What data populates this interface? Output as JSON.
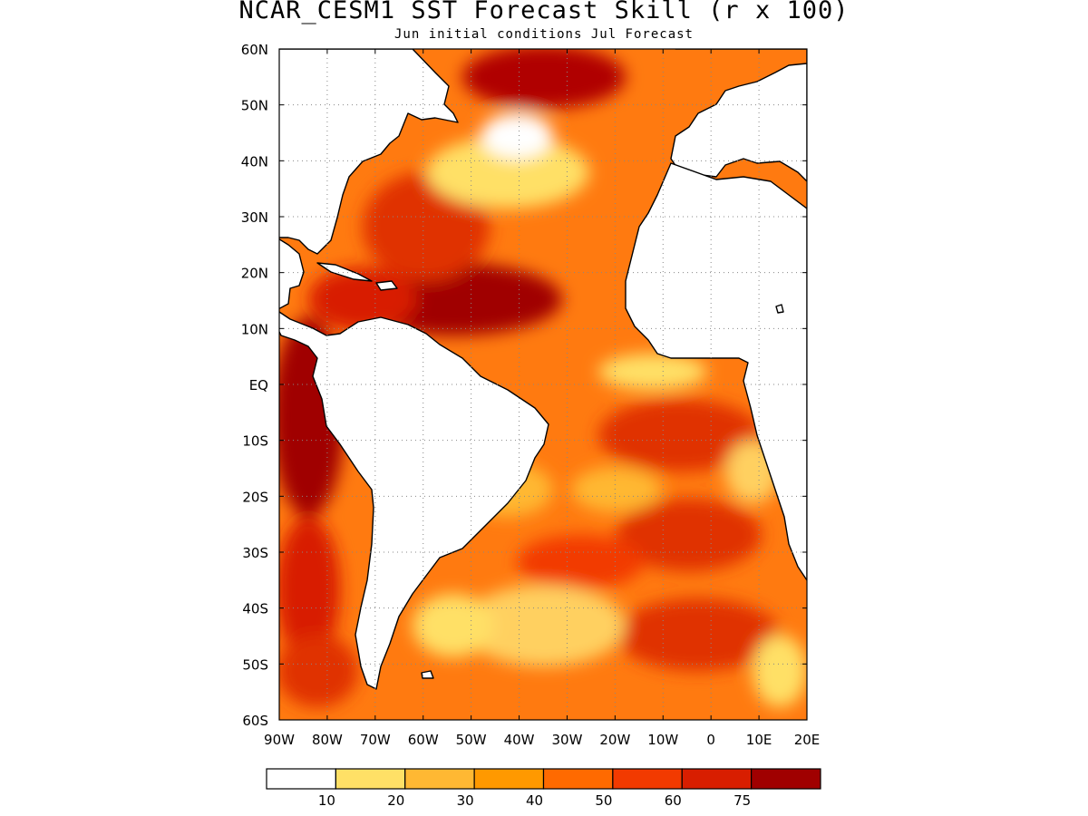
{
  "title": "NCAR_CESM1 SST Forecast Skill (r x 100)",
  "subtitle": "Jun initial conditions   Jul Forecast",
  "lat_labels": [
    "60N",
    "50N",
    "40N",
    "30N",
    "20N",
    "10N",
    "EQ",
    "10S",
    "20S",
    "30S",
    "40S",
    "50S",
    "60S"
  ],
  "lon_labels": [
    "90W",
    "80W",
    "70W",
    "60W",
    "50W",
    "40W",
    "30W",
    "20W",
    "10W",
    "0",
    "10E",
    "20E"
  ],
  "lat_range": [
    -60,
    60
  ],
  "lon_range": [
    -90,
    20
  ],
  "grid": "dotted",
  "colorbar": {
    "colors": [
      "#ffffff",
      "#ffe066",
      "#ffb833",
      "#ff9900",
      "#ff6a00",
      "#f23a00",
      "#d81e00",
      "#a00000"
    ],
    "tick_labels": [
      "10",
      "20",
      "30",
      "40",
      "50",
      "60",
      "75"
    ]
  }
}
